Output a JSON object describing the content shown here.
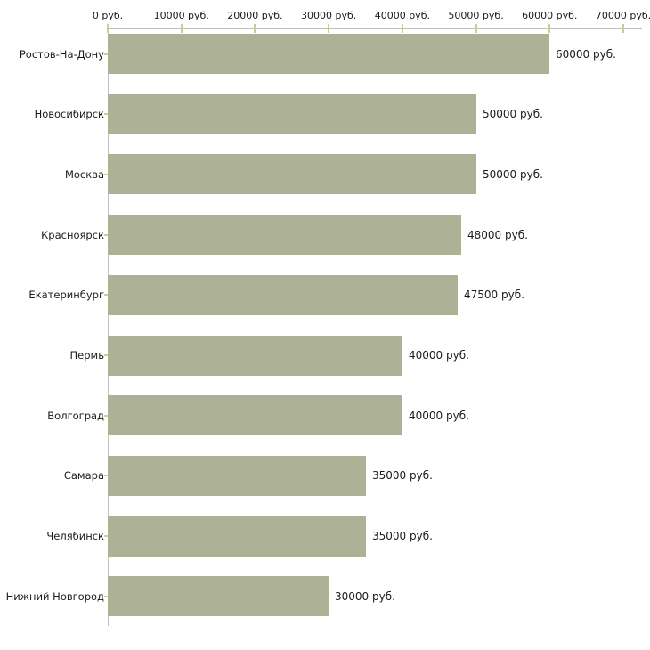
{
  "chart_data": {
    "type": "bar",
    "orientation": "horizontal",
    "title": "",
    "xlabel": "",
    "ylabel": "",
    "axis_position": "top",
    "grid": false,
    "legend": false,
    "xlim": [
      0,
      70000
    ],
    "x_unit": "руб.",
    "categories": [
      "Ростов-На-Дону",
      "Новосибирск",
      "Москва",
      "Красноярск",
      "Екатеринбург",
      "Пермь",
      "Волгоград",
      "Самара",
      "Челябинск",
      "Нижний Новгород"
    ],
    "values": [
      60000,
      50000,
      50000,
      48000,
      47500,
      40000,
      40000,
      35000,
      35000,
      30000
    ],
    "value_labels": [
      "60000 руб.",
      "50000 руб.",
      "50000 руб.",
      "48000 руб.",
      "47500 руб.",
      "40000 руб.",
      "40000 руб.",
      "35000 руб.",
      "35000 руб.",
      "30000 руб."
    ],
    "x_ticks": [
      {
        "value": 0,
        "label": "0 руб."
      },
      {
        "value": 10000,
        "label": "10000 руб."
      },
      {
        "value": 20000,
        "label": "20000 руб."
      },
      {
        "value": 30000,
        "label": "30000 руб."
      },
      {
        "value": 40000,
        "label": "40000 руб."
      },
      {
        "value": 50000,
        "label": "50000 руб."
      },
      {
        "value": 60000,
        "label": "60000 руб."
      },
      {
        "value": 70000,
        "label": "70000 руб."
      }
    ],
    "colors": {
      "bar": "#adb296",
      "axis_line": "#c0c0c0",
      "tick_mark": "#cccc99",
      "text": "#1a1a1a",
      "background": "#ffffff"
    }
  }
}
